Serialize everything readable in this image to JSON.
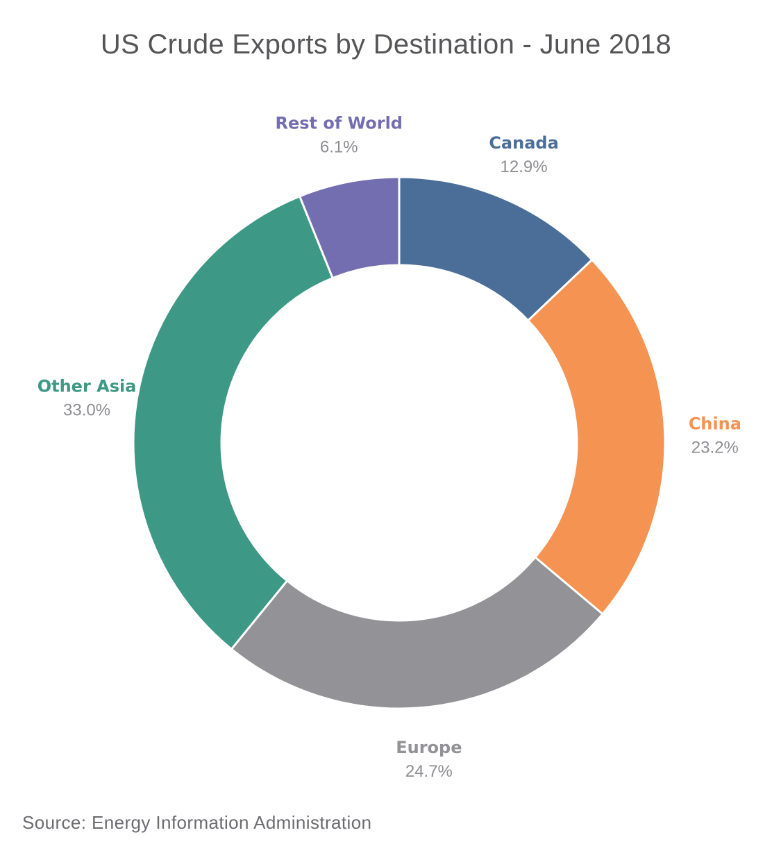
{
  "chart_data": {
    "type": "pie",
    "style": "donut",
    "title": "US Crude Exports by Destination - June 2018",
    "unit": "%",
    "slices": [
      {
        "name": "Canada",
        "value": 12.9,
        "label": "12.9%",
        "color": "#4a6e98"
      },
      {
        "name": "China",
        "value": 23.2,
        "label": "23.2%",
        "color": "#f59352"
      },
      {
        "name": "Europe",
        "value": 24.7,
        "label": "24.7%",
        "color": "#939296"
      },
      {
        "name": "Other Asia",
        "value": 33.0,
        "label": "33.0%",
        "color": "#3d9885"
      },
      {
        "name": "Rest of World",
        "value": 6.1,
        "label": "6.1%",
        "color": "#736eb0"
      }
    ],
    "legend": "none",
    "labels_position": "outside"
  },
  "source": "Source: Energy Information Administration",
  "colors": {
    "title": "#555558",
    "value_text": "#8e8e93",
    "source_text": "#6b6b70",
    "separator": "#ffffff"
  }
}
